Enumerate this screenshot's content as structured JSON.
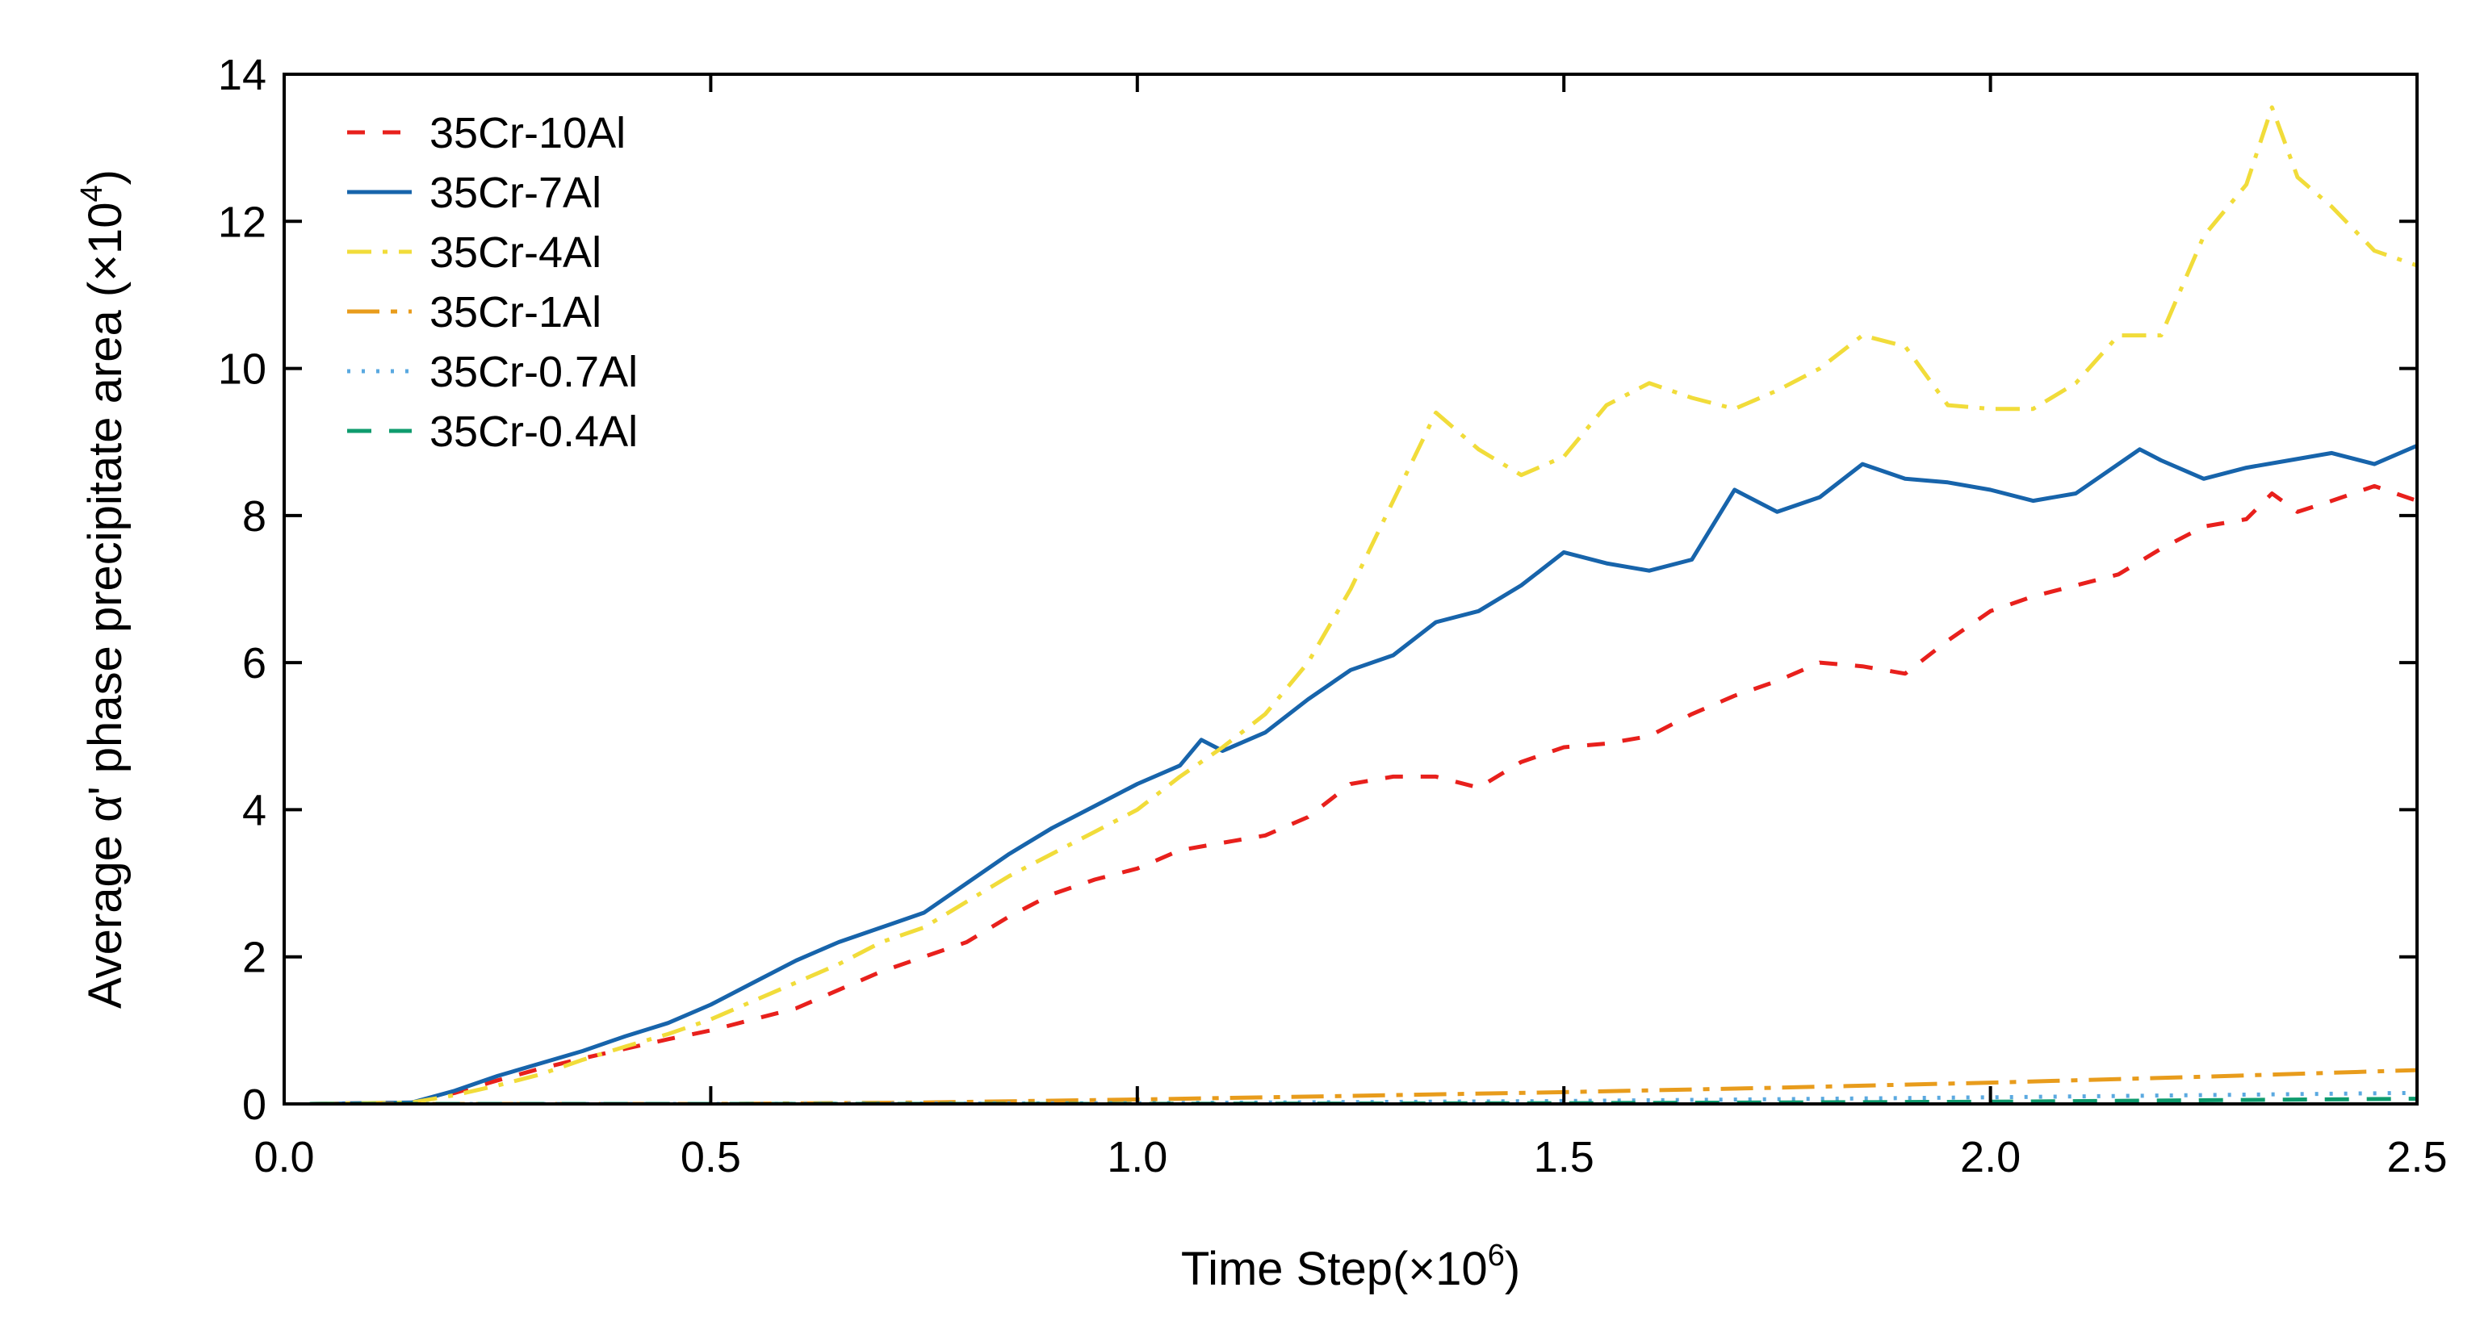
{
  "chart_data": {
    "type": "line",
    "title": "",
    "xlabel": {
      "text": "Time Step(×10",
      "sup": "6",
      "suffix": ")"
    },
    "ylabel": {
      "text": "Average  α' phase precipitate area (×10",
      "sup": "4",
      "suffix": ")"
    },
    "xlim": [
      0,
      2.5
    ],
    "ylim": [
      0,
      14
    ],
    "xticks": [
      0.0,
      0.5,
      1.0,
      1.5,
      2.0,
      2.5
    ],
    "xtick_labels": [
      "0.0",
      "0.5",
      "1.0",
      "1.5",
      "2.0",
      "2.5"
    ],
    "yticks": [
      0,
      2,
      4,
      6,
      8,
      10,
      12,
      14
    ],
    "ytick_labels": [
      "0",
      "2",
      "4",
      "6",
      "8",
      "10",
      "12",
      "14"
    ],
    "grid": false,
    "legend_position": "top-left",
    "series": [
      {
        "name": "35Cr-10Al",
        "color": "#e8201c",
        "dash": "dashed",
        "x": [
          0.03,
          0.15,
          0.2,
          0.25,
          0.3,
          0.35,
          0.4,
          0.45,
          0.5,
          0.55,
          0.6,
          0.65,
          0.7,
          0.75,
          0.8,
          0.85,
          0.9,
          0.95,
          1.0,
          1.05,
          1.1,
          1.15,
          1.2,
          1.25,
          1.3,
          1.35,
          1.4,
          1.45,
          1.5,
          1.55,
          1.6,
          1.65,
          1.7,
          1.75,
          1.8,
          1.85,
          1.9,
          1.95,
          2.0,
          2.05,
          2.1,
          2.15,
          2.2,
          2.25,
          2.3,
          2.33,
          2.36,
          2.4,
          2.45,
          2.5
        ],
        "y": [
          0,
          0.02,
          0.15,
          0.32,
          0.48,
          0.62,
          0.75,
          0.88,
          1.0,
          1.15,
          1.3,
          1.55,
          1.8,
          2.0,
          2.2,
          2.55,
          2.85,
          3.05,
          3.2,
          3.45,
          3.55,
          3.65,
          3.9,
          4.35,
          4.45,
          4.45,
          4.3,
          4.65,
          4.85,
          4.9,
          5.0,
          5.3,
          5.55,
          5.75,
          6.0,
          5.95,
          5.85,
          6.3,
          6.7,
          6.9,
          7.05,
          7.2,
          7.55,
          7.85,
          7.95,
          8.3,
          8.05,
          8.2,
          8.4,
          8.2
        ]
      },
      {
        "name": "35Cr-7Al",
        "color": "#1764ab",
        "dash": "solid",
        "x": [
          0.03,
          0.15,
          0.2,
          0.25,
          0.3,
          0.35,
          0.4,
          0.45,
          0.5,
          0.55,
          0.6,
          0.65,
          0.7,
          0.75,
          0.8,
          0.85,
          0.9,
          0.95,
          1.0,
          1.05,
          1.075,
          1.1,
          1.15,
          1.2,
          1.25,
          1.3,
          1.35,
          1.4,
          1.45,
          1.5,
          1.55,
          1.6,
          1.65,
          1.7,
          1.75,
          1.8,
          1.85,
          1.9,
          1.95,
          2.0,
          2.05,
          2.1,
          2.15,
          2.175,
          2.2,
          2.25,
          2.3,
          2.35,
          2.4,
          2.45,
          2.5
        ],
        "y": [
          0,
          0.02,
          0.18,
          0.38,
          0.55,
          0.72,
          0.92,
          1.1,
          1.35,
          1.65,
          1.95,
          2.2,
          2.4,
          2.6,
          3.0,
          3.4,
          3.75,
          4.05,
          4.35,
          4.6,
          4.95,
          4.8,
          5.05,
          5.5,
          5.9,
          6.1,
          6.55,
          6.7,
          7.05,
          7.5,
          7.35,
          7.25,
          7.4,
          8.35,
          8.05,
          8.25,
          8.7,
          8.5,
          8.45,
          8.35,
          8.2,
          8.3,
          8.7,
          8.9,
          8.75,
          8.5,
          8.65,
          8.75,
          8.85,
          8.7,
          8.95
        ]
      },
      {
        "name": "35Cr-4Al",
        "color": "#f1dc3a",
        "dash": "dashdot",
        "x": [
          0.03,
          0.15,
          0.2,
          0.25,
          0.3,
          0.35,
          0.4,
          0.45,
          0.5,
          0.55,
          0.6,
          0.65,
          0.7,
          0.75,
          0.8,
          0.85,
          0.9,
          0.95,
          1.0,
          1.05,
          1.1,
          1.15,
          1.2,
          1.25,
          1.3,
          1.35,
          1.4,
          1.45,
          1.5,
          1.55,
          1.6,
          1.65,
          1.7,
          1.75,
          1.8,
          1.85,
          1.9,
          1.95,
          2.0,
          2.05,
          2.1,
          2.15,
          2.2,
          2.25,
          2.3,
          2.33,
          2.36,
          2.4,
          2.45,
          2.5
        ],
        "y": [
          0,
          0.02,
          0.12,
          0.25,
          0.4,
          0.6,
          0.78,
          0.95,
          1.15,
          1.4,
          1.65,
          1.9,
          2.2,
          2.4,
          2.75,
          3.1,
          3.4,
          3.7,
          4.0,
          4.45,
          4.85,
          5.3,
          6.0,
          7.0,
          8.2,
          9.4,
          8.9,
          8.55,
          8.8,
          9.5,
          9.8,
          9.6,
          9.45,
          9.7,
          10.0,
          10.45,
          10.3,
          9.5,
          9.45,
          9.45,
          9.8,
          10.45,
          10.45,
          11.8,
          12.5,
          13.55,
          12.6,
          12.2,
          11.6,
          11.4
        ]
      },
      {
        "name": "35Cr-1Al",
        "color": "#e89c1c",
        "dash": "dashdot-long",
        "x": [
          0.03,
          0.5,
          0.75,
          1.0,
          1.25,
          1.5,
          1.75,
          2.0,
          2.25,
          2.5
        ],
        "y": [
          0,
          0,
          0.02,
          0.06,
          0.11,
          0.16,
          0.22,
          0.29,
          0.37,
          0.46
        ]
      },
      {
        "name": "35Cr-0.7Al",
        "color": "#5aa9e0",
        "dash": "dotted",
        "x": [
          0.03,
          0.5,
          1.0,
          1.5,
          2.0,
          2.5
        ],
        "y": [
          0,
          0,
          0.01,
          0.04,
          0.09,
          0.15
        ]
      },
      {
        "name": "35Cr-0.4Al",
        "color": "#0f9c6e",
        "dash": "dashed-long",
        "x": [
          0.03,
          0.5,
          1.0,
          1.5,
          2.0,
          2.5
        ],
        "y": [
          0,
          0,
          0,
          0.01,
          0.03,
          0.07
        ]
      }
    ]
  }
}
